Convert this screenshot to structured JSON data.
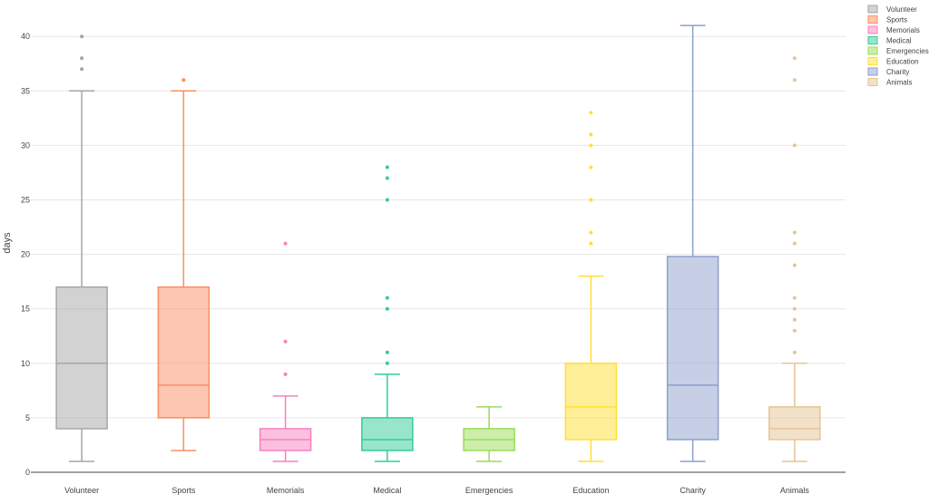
{
  "chart_data": {
    "type": "box",
    "ylabel": "days",
    "ylim": [
      0,
      42
    ],
    "yticks": [
      0,
      5,
      10,
      15,
      20,
      25,
      30,
      35,
      40
    ],
    "grid": true,
    "legend_position": "top-right",
    "categories": [
      "Volunteer",
      "Sports",
      "Memorials",
      "Medical",
      "Emergencies",
      "Education",
      "Charity",
      "Animals"
    ],
    "series": [
      {
        "name": "Volunteer",
        "color": "#a6a6a6",
        "min": 1,
        "q1": 4,
        "median": 10,
        "q3": 17,
        "max": 35,
        "outliers": [
          37,
          38,
          40
        ]
      },
      {
        "name": "Sports",
        "color": "#fc8d62",
        "min": 2,
        "q1": 5,
        "median": 8,
        "q3": 17,
        "max": 35,
        "outliers": [
          36
        ]
      },
      {
        "name": "Memorials",
        "color": "#f781bf",
        "min": 1,
        "q1": 2,
        "median": 3,
        "q3": 4,
        "max": 7,
        "outliers": [
          9,
          12,
          21
        ]
      },
      {
        "name": "Medical",
        "color": "#33cc99",
        "min": 1,
        "q1": 2,
        "median": 3,
        "q3": 5,
        "max": 9,
        "outliers": [
          10,
          11,
          15,
          16,
          25,
          27,
          28
        ]
      },
      {
        "name": "Emergencies",
        "color": "#99dd55",
        "min": 1,
        "q1": 2,
        "median": 3,
        "q3": 4,
        "max": 6,
        "outliers": []
      },
      {
        "name": "Education",
        "color": "#ffe033",
        "min": 1,
        "q1": 3,
        "median": 6,
        "q3": 10,
        "max": 18,
        "outliers": [
          21,
          22,
          25,
          28,
          30,
          31,
          33
        ]
      },
      {
        "name": "Charity",
        "color": "#8da0cb",
        "min": 1,
        "q1": 3,
        "median": 8,
        "q3": 19.8,
        "max": 41,
        "outliers": []
      },
      {
        "name": "Animals",
        "color": "#e5c494",
        "min": 1,
        "q1": 3,
        "median": 4,
        "q3": 6,
        "max": 10,
        "outliers": [
          11,
          13,
          14,
          15,
          16,
          19,
          21,
          22,
          30,
          36,
          38
        ]
      }
    ]
  }
}
